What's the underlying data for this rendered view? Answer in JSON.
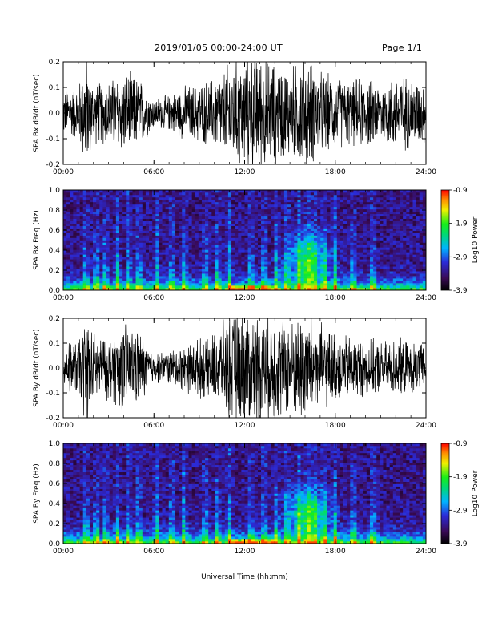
{
  "header": {
    "title": "2019/01/05  00:00-24:00 UT",
    "page": "Page 1/1"
  },
  "chart_data": [
    {
      "type": "line",
      "ylabel": "SPA Bx dB/dt (nT/sec)",
      "xlim": [
        "00:00",
        "24:00"
      ],
      "ylim": [
        -0.2,
        0.2
      ],
      "x_ticks": [
        "00:00",
        "06:00",
        "12:00",
        "18:00",
        "24:00"
      ],
      "y_ticks": [
        "-0.2",
        "-0.1",
        "0.0",
        "0.1",
        "0.2"
      ],
      "amplitude_envelope": {
        "x_hours": [
          0,
          1,
          1.5,
          2,
          3,
          4,
          5,
          6,
          7,
          8,
          9,
          10,
          11,
          12,
          13,
          14,
          15,
          16,
          17,
          18,
          19,
          20,
          21,
          22,
          23,
          24
        ],
        "values": [
          0.08,
          0.09,
          0.2,
          0.1,
          0.11,
          0.14,
          0.12,
          0.05,
          0.06,
          0.09,
          0.1,
          0.12,
          0.17,
          0.2,
          0.2,
          0.18,
          0.15,
          0.2,
          0.14,
          0.12,
          0.11,
          0.12,
          0.1,
          0.13,
          0.12,
          0.1
        ]
      }
    },
    {
      "type": "heatmap",
      "ylabel": "SPA Bx Freq (Hz)",
      "xlim": [
        "00:00",
        "24:00"
      ],
      "ylim": [
        0.0,
        1.0
      ],
      "x_ticks": [
        "00:00",
        "06:00",
        "12:00",
        "18:00",
        "24:00"
      ],
      "y_ticks": [
        "0.0",
        "0.2",
        "0.4",
        "0.6",
        "0.8",
        "1.0"
      ],
      "colorbar": {
        "label": "Log10 Power",
        "ticks": [
          "-0.9",
          "-1.9",
          "-2.9",
          "-3.9"
        ],
        "range": [
          -3.9,
          -0.9
        ]
      }
    },
    {
      "type": "line",
      "ylabel": "SPA By dB/dt (nT/sec)",
      "xlim": [
        "00:00",
        "24:00"
      ],
      "ylim": [
        -0.2,
        0.2
      ],
      "x_ticks": [
        "00:00",
        "06:00",
        "12:00",
        "18:00",
        "24:00"
      ],
      "y_ticks": [
        "-0.2",
        "-0.1",
        "0.0",
        "0.1",
        "0.2"
      ],
      "amplitude_envelope": {
        "x_hours": [
          0,
          1,
          1.5,
          2,
          3,
          4,
          5,
          6,
          7,
          8,
          9,
          10,
          11,
          12,
          13,
          14,
          15,
          16,
          17,
          18,
          19,
          20,
          21,
          22,
          23,
          24
        ],
        "values": [
          0.07,
          0.1,
          0.2,
          0.12,
          0.11,
          0.15,
          0.13,
          0.05,
          0.06,
          0.08,
          0.1,
          0.12,
          0.18,
          0.2,
          0.2,
          0.18,
          0.16,
          0.2,
          0.15,
          0.12,
          0.11,
          0.1,
          0.09,
          0.1,
          0.09,
          0.08
        ]
      }
    },
    {
      "type": "heatmap",
      "ylabel": "SPA By Freq (Hz)",
      "xlim": [
        "00:00",
        "24:00"
      ],
      "ylim": [
        0.0,
        1.0
      ],
      "x_ticks": [
        "00:00",
        "06:00",
        "12:00",
        "18:00",
        "24:00"
      ],
      "y_ticks": [
        "0.0",
        "0.2",
        "0.4",
        "0.6",
        "0.8",
        "1.0"
      ],
      "colorbar": {
        "label": "Log10 Power",
        "ticks": [
          "-0.9",
          "-1.9",
          "-2.9",
          "-3.9"
        ],
        "range": [
          -3.9,
          -0.9
        ]
      }
    }
  ],
  "xlabel": "Universal Time (hh:mm)"
}
